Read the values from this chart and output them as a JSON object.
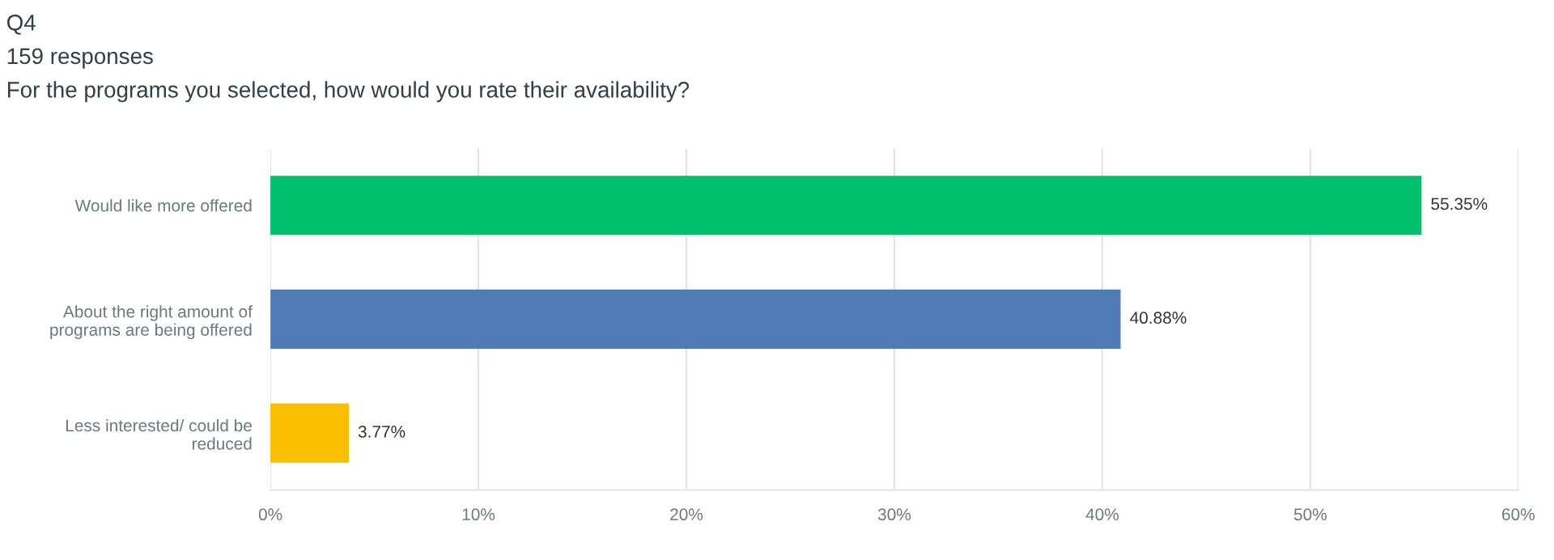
{
  "chart_data": {
    "type": "bar",
    "orientation": "horizontal",
    "title": "Q4",
    "subtitle": "159 responses",
    "annotations": [
      "For the programs you selected, how would you rate their availability?"
    ],
    "categories": [
      "Would like more offered",
      "About the right amount of\nprograms are being offered",
      "Less interested/ could be\nreduced"
    ],
    "values": [
      55.35,
      40.88,
      3.77
    ],
    "colors": [
      "#00bf6f",
      "#507cb6",
      "#f9be00"
    ],
    "value_labels": [
      "55.35%",
      "40.88%",
      "3.77%"
    ],
    "xlim": [
      0,
      60
    ],
    "xticks": [
      {
        "value": 0,
        "label": "0%"
      },
      {
        "value": 10,
        "label": "10%"
      },
      {
        "value": 20,
        "label": "20%"
      },
      {
        "value": 30,
        "label": "30%"
      },
      {
        "value": 40,
        "label": "40%"
      },
      {
        "value": 50,
        "label": "50%"
      },
      {
        "value": 60,
        "label": "60%"
      }
    ],
    "grid": "x",
    "legend": false
  }
}
